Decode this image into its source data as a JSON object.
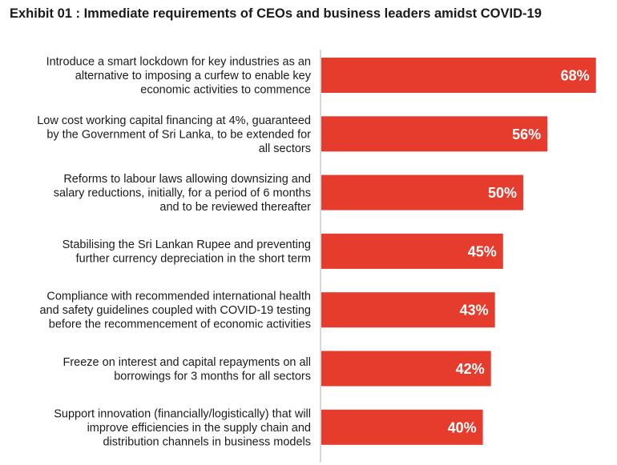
{
  "chart_data": {
    "type": "bar",
    "orientation": "horizontal",
    "title": "Exhibit 01 : Immediate requirements of CEOs and business leaders amidst COVID-19",
    "categories": [
      [
        "Introduce a smart lockdown for key industries as an",
        "alternative to imposing a curfew to enable key",
        "economic activities to commence"
      ],
      [
        "Low cost working capital financing at 4%, guaranteed",
        "by the Government of Sri Lanka, to be extended for",
        "all sectors"
      ],
      [
        "Reforms to labour laws allowing downsizing and",
        "salary reductions, initially, for a period of 6 months",
        "and to be reviewed thereafter"
      ],
      [
        "Stabilising the Sri Lankan Rupee and preventing",
        "further currency depreciation in the short term"
      ],
      [
        "Compliance with recommended international health",
        "and safety guidelines coupled with COVID-19 testing",
        "before the recommencement of economic activities"
      ],
      [
        "Freeze on interest and capital repayments on all",
        "borrowings for 3 months for all sectors"
      ],
      [
        "Support innovation (financially/logistically) that will",
        "improve efficiencies in the supply chain and",
        "distribution channels in business models"
      ]
    ],
    "values": [
      68,
      56,
      50,
      45,
      43,
      42,
      40
    ],
    "value_labels": [
      "68%",
      "56%",
      "50%",
      "45%",
      "43%",
      "42%",
      "40%"
    ],
    "bar_color": "#e63c2e",
    "grid": false,
    "legend": "none"
  }
}
